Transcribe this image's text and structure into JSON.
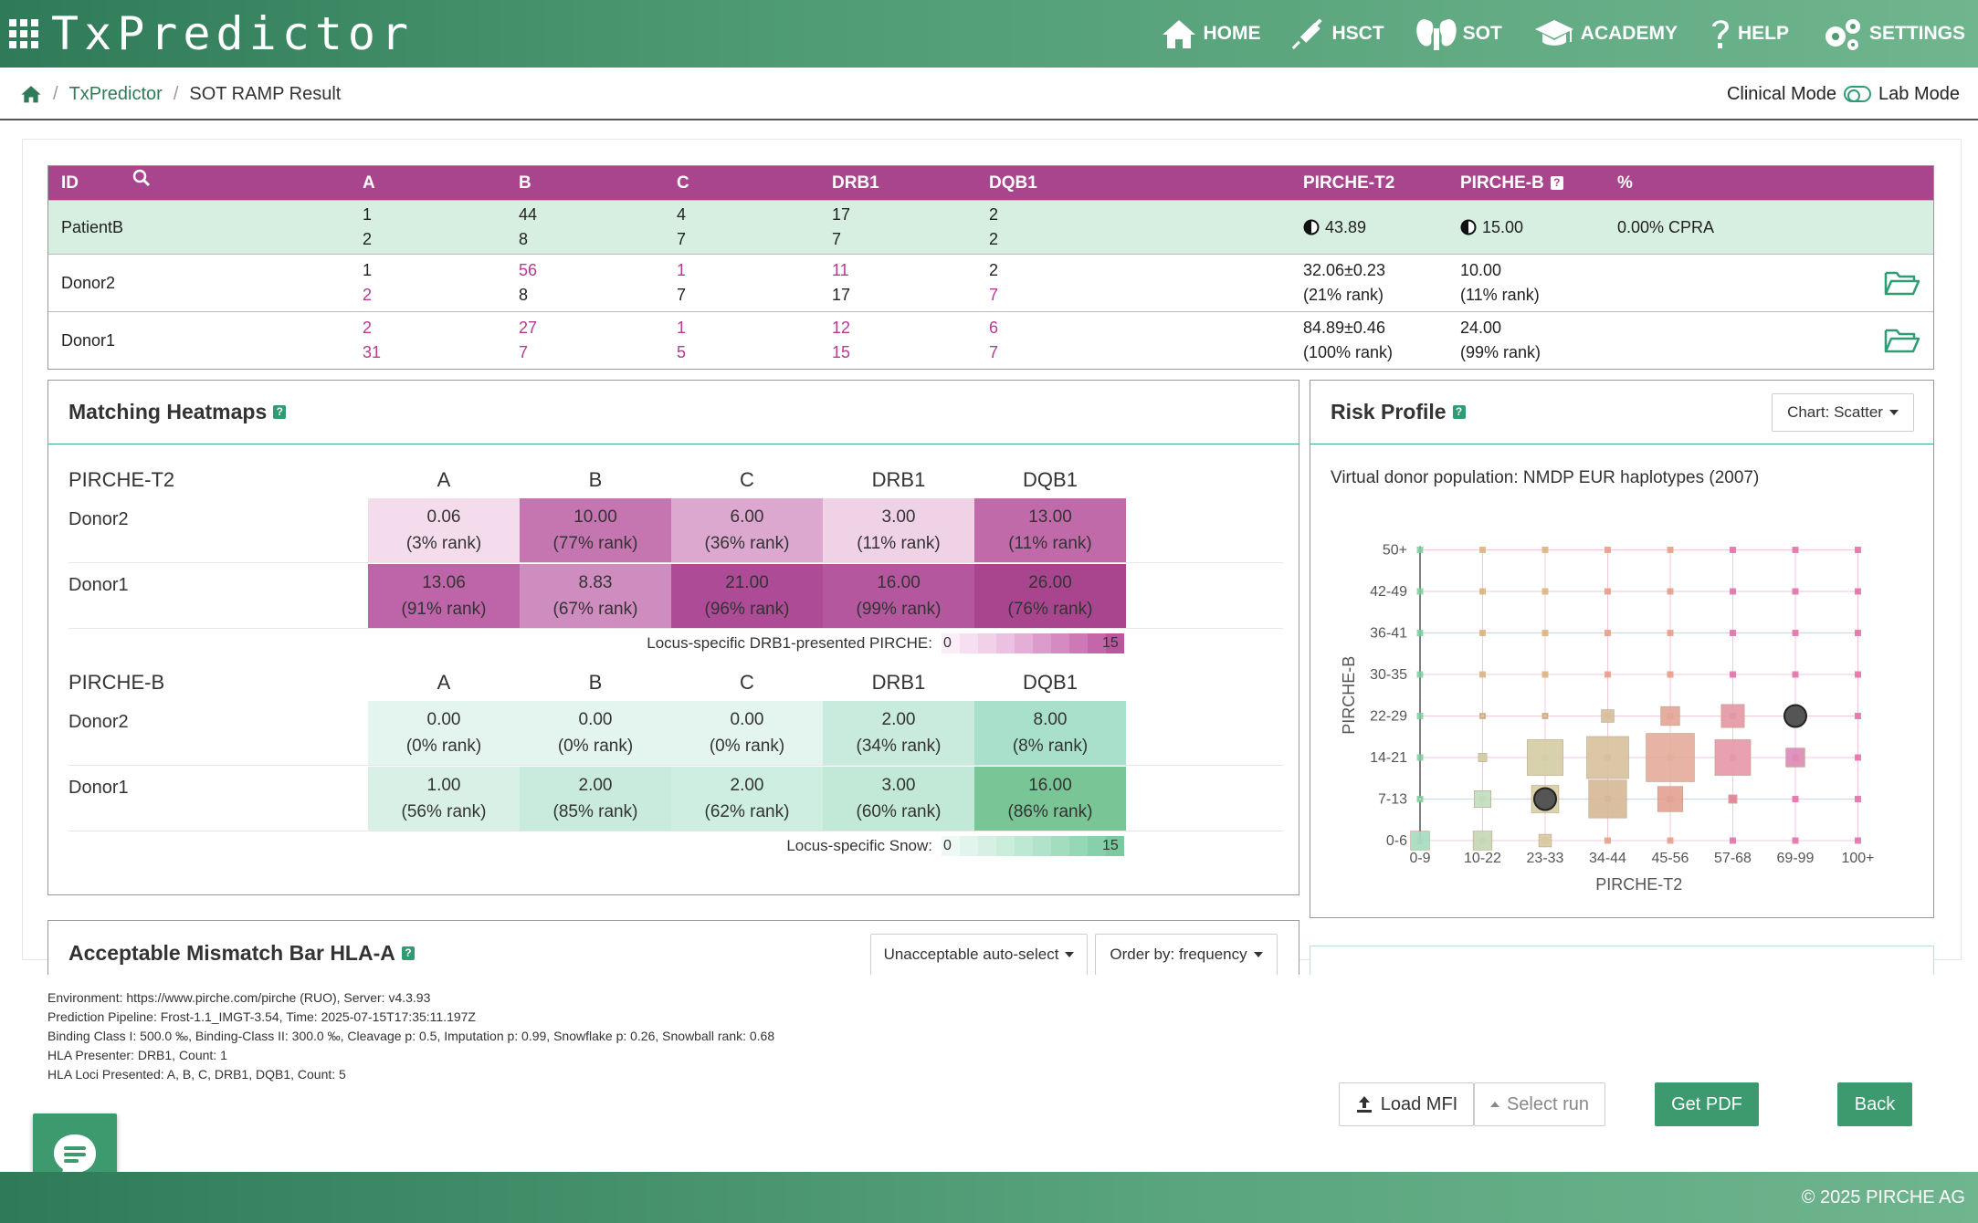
{
  "app": {
    "name": "TxPredictor"
  },
  "nav": [
    {
      "label": "HOME",
      "icon": "home-icon"
    },
    {
      "label": "HSCT",
      "icon": "syringe-icon"
    },
    {
      "label": "SOT",
      "icon": "kidneys-icon"
    },
    {
      "label": "ACADEMY",
      "icon": "graduation-cap-icon"
    },
    {
      "label": "HELP",
      "icon": "question-icon"
    },
    {
      "label": "SETTINGS",
      "icon": "gears-icon"
    }
  ],
  "breadcrumb": {
    "home_icon": "home-icon",
    "app": "TxPredictor",
    "sep": "/",
    "current": "SOT RAMP Result"
  },
  "mode": {
    "clinical": "Clinical Mode",
    "lab": "Lab Mode"
  },
  "table": {
    "headers": {
      "id": "ID",
      "a": "A",
      "b": "B",
      "c": "C",
      "drb1": "DRB1",
      "dqb1": "DQB1",
      "pt2": "PIRCHE-T2",
      "pb": "PIRCHE-B",
      "pct": "%"
    },
    "patient": {
      "id": "PatientB",
      "a": [
        "1",
        "2"
      ],
      "b": [
        "44",
        "8"
      ],
      "c": [
        "4",
        "7"
      ],
      "drb1": [
        "17",
        "7"
      ],
      "dqb1": [
        "2",
        "2"
      ],
      "pt2": "43.89",
      "pb": "15.00",
      "cpra": "0.00% CPRA"
    },
    "donors": [
      {
        "id": "Donor2",
        "a": [
          "1",
          "2"
        ],
        "a_mm": [
          false,
          true
        ],
        "b": [
          "56",
          "8"
        ],
        "b_mm": [
          true,
          false
        ],
        "c": [
          "1",
          "7"
        ],
        "c_mm": [
          true,
          false
        ],
        "drb1": [
          "11",
          "17"
        ],
        "drb1_mm": [
          true,
          false
        ],
        "dqb1": [
          "2",
          "7"
        ],
        "dqb1_mm": [
          false,
          true
        ],
        "pt2": [
          "32.06±0.23",
          "(21% rank)"
        ],
        "pb": [
          "10.00",
          "(11% rank)"
        ]
      },
      {
        "id": "Donor1",
        "a": [
          "2",
          "31"
        ],
        "a_mm": [
          true,
          true
        ],
        "b": [
          "27",
          "7"
        ],
        "b_mm": [
          true,
          true
        ],
        "c": [
          "1",
          "5"
        ],
        "c_mm": [
          true,
          true
        ],
        "drb1": [
          "12",
          "15"
        ],
        "drb1_mm": [
          true,
          true
        ],
        "dqb1": [
          "6",
          "7"
        ],
        "dqb1_mm": [
          true,
          true
        ],
        "pt2": [
          "84.89±0.46",
          "(100% rank)"
        ],
        "pb": [
          "24.00",
          "(99% rank)"
        ]
      }
    ]
  },
  "heatmaps": {
    "title": "Matching Heatmaps",
    "loci": [
      "A",
      "B",
      "C",
      "DRB1",
      "DQB1"
    ],
    "sections": [
      {
        "name": "PIRCHE-T2",
        "rows": [
          {
            "donor": "Donor2",
            "values": [
              "0.06",
              "10.00",
              "6.00",
              "3.00",
              "13.00"
            ],
            "ranks": [
              "(3% rank)",
              "(77% rank)",
              "(36% rank)",
              "(11% rank)",
              "(11% rank)"
            ],
            "colors": [
              "#f4dced",
              "#c576b1",
              "#dca8cf",
              "#f0d2e7",
              "#c06aaa"
            ]
          },
          {
            "donor": "Donor1",
            "values": [
              "13.06",
              "8.83",
              "21.00",
              "16.00",
              "26.00"
            ],
            "ranks": [
              "(91% rank)",
              "(67% rank)",
              "(96% rank)",
              "(99% rank)",
              "(76% rank)"
            ],
            "colors": [
              "#bd65a8",
              "#cf8cbf",
              "#ad4b97",
              "#b4579f",
              "#a9458f"
            ]
          }
        ],
        "legend": {
          "label": "Locus-specific DRB1-presented PIRCHE:",
          "min": "0",
          "max": "15",
          "colors": [
            "#fbeef7",
            "#f6dff0",
            "#f1d0e8",
            "#ebc0e0",
            "#e4aed6",
            "#dc9ccb",
            "#d58bc1",
            "#cd79b6",
            "#c466aa",
            "#bb559f"
          ]
        }
      },
      {
        "name": "PIRCHE-B",
        "rows": [
          {
            "donor": "Donor2",
            "values": [
              "0.00",
              "0.00",
              "0.00",
              "2.00",
              "8.00"
            ],
            "ranks": [
              "(0% rank)",
              "(0% rank)",
              "(0% rank)",
              "(34% rank)",
              "(8% rank)"
            ],
            "colors": [
              "#e4f4ee",
              "#e4f4ee",
              "#e4f4ee",
              "#c9ebdd",
              "#a9e0cc"
            ]
          },
          {
            "donor": "Donor1",
            "values": [
              "1.00",
              "2.00",
              "2.00",
              "3.00",
              "16.00"
            ],
            "ranks": [
              "(56% rank)",
              "(85% rank)",
              "(62% rank)",
              "(60% rank)",
              "(86% rank)"
            ],
            "colors": [
              "#d8f0e6",
              "#c9ebdd",
              "#cdeee1",
              "#c2e9d8",
              "#79c595"
            ]
          }
        ],
        "legend": {
          "label": "Locus-specific Snow:",
          "min": "0",
          "max": "15",
          "colors": [
            "#eef9f4",
            "#e2f5ec",
            "#d6f1e4",
            "#caeddc",
            "#bde8d3",
            "#b0e3ca",
            "#a3ddc0",
            "#96d7b6",
            "#88d0ab",
            "#7ac99f"
          ]
        }
      }
    ]
  },
  "risk": {
    "title": "Risk Profile",
    "chart_button": "Chart: Scatter",
    "subtitle": "Virtual donor population: NMDP EUR haplotypes (2007)"
  },
  "chart_data": {
    "type": "scatter",
    "title": "",
    "xlabel": "PIRCHE-T2",
    "ylabel": "PIRCHE-B",
    "x_categories": [
      "0-9",
      "10-22",
      "23-33",
      "34-44",
      "45-56",
      "57-68",
      "69-99",
      "100+"
    ],
    "y_categories": [
      "0-6",
      "7-13",
      "14-21",
      "22-29",
      "30-35",
      "36-41",
      "42-49",
      "50+"
    ],
    "grid": true,
    "population": [
      {
        "x": "0-9",
        "y": "0-6",
        "size": 0.45,
        "color": "#a9dcbf"
      },
      {
        "x": "0-9",
        "y": "7-13",
        "size": 0.08,
        "color": "#a9dcbf"
      },
      {
        "x": "10-22",
        "y": "0-6",
        "size": 0.45,
        "color": "#c6d9b5"
      },
      {
        "x": "10-22",
        "y": "7-13",
        "size": 0.4,
        "color": "#c2dfbe"
      },
      {
        "x": "10-22",
        "y": "14-21",
        "size": 0.2,
        "color": "#d3d1a8"
      },
      {
        "x": "10-22",
        "y": "22-29",
        "size": 0.1,
        "color": "#dcc8a4"
      },
      {
        "x": "23-33",
        "y": "0-6",
        "size": 0.3,
        "color": "#d7cba3"
      },
      {
        "x": "23-33",
        "y": "7-13",
        "size": 0.65,
        "color": "#d8d0a4"
      },
      {
        "x": "23-33",
        "y": "14-21",
        "size": 0.85,
        "color": "#d5cfa5"
      },
      {
        "x": "23-33",
        "y": "22-29",
        "size": 0.1,
        "color": "#dcc4a4"
      },
      {
        "x": "34-44",
        "y": "7-13",
        "size": 0.9,
        "color": "#d6b999"
      },
      {
        "x": "34-44",
        "y": "14-21",
        "size": 1.0,
        "color": "#d8c39f"
      },
      {
        "x": "34-44",
        "y": "22-29",
        "size": 0.3,
        "color": "#d9c09e"
      },
      {
        "x": "45-56",
        "y": "7-13",
        "size": 0.6,
        "color": "#e3a394"
      },
      {
        "x": "45-56",
        "y": "14-21",
        "size": 1.15,
        "color": "#e6ad9d"
      },
      {
        "x": "45-56",
        "y": "22-29",
        "size": 0.45,
        "color": "#e3a898"
      },
      {
        "x": "57-68",
        "y": "7-13",
        "size": 0.2,
        "color": "#e48a9f"
      },
      {
        "x": "57-68",
        "y": "14-21",
        "size": 0.85,
        "color": "#e79aaa"
      },
      {
        "x": "57-68",
        "y": "22-29",
        "size": 0.55,
        "color": "#e49aa6"
      },
      {
        "x": "69-99",
        "y": "14-21",
        "size": 0.45,
        "color": "#dd8bb5"
      }
    ],
    "donors": [
      {
        "name": "Donor2",
        "x": "23-33",
        "y": "7-13"
      },
      {
        "name": "Donor1",
        "x": "69-99",
        "y": "22-29"
      }
    ]
  },
  "acceptable": {
    "title": "Acceptable Mismatch Bar HLA-A",
    "auto_select": "Unacceptable auto-select",
    "order_by": "Order by: frequency"
  },
  "environment": [
    "Environment: https://www.pirche.com/pirche (RUO), Server: v4.3.93",
    "Prediction Pipeline: Frost-1.1_IMGT-3.54, Time: 2025-07-15T17:35:11.197Z",
    "Binding Class I: 500.0 ‰, Binding-Class II: 300.0 ‰, Cleavage p: 0.5, Imputation p: 0.99, Snowflake p: 0.26, Snowball rank: 0.68",
    "HLA Presenter: DRB1, Count: 1",
    "HLA Loci Presented: A, B, C, DRB1, DQB1, Count: 5"
  ],
  "actions": {
    "load_mfi": "Load MFI",
    "select_run": "Select run",
    "get_pdf": "Get PDF",
    "back": "Back"
  },
  "footer": {
    "copyright": "© 2025 PIRCHE AG"
  }
}
